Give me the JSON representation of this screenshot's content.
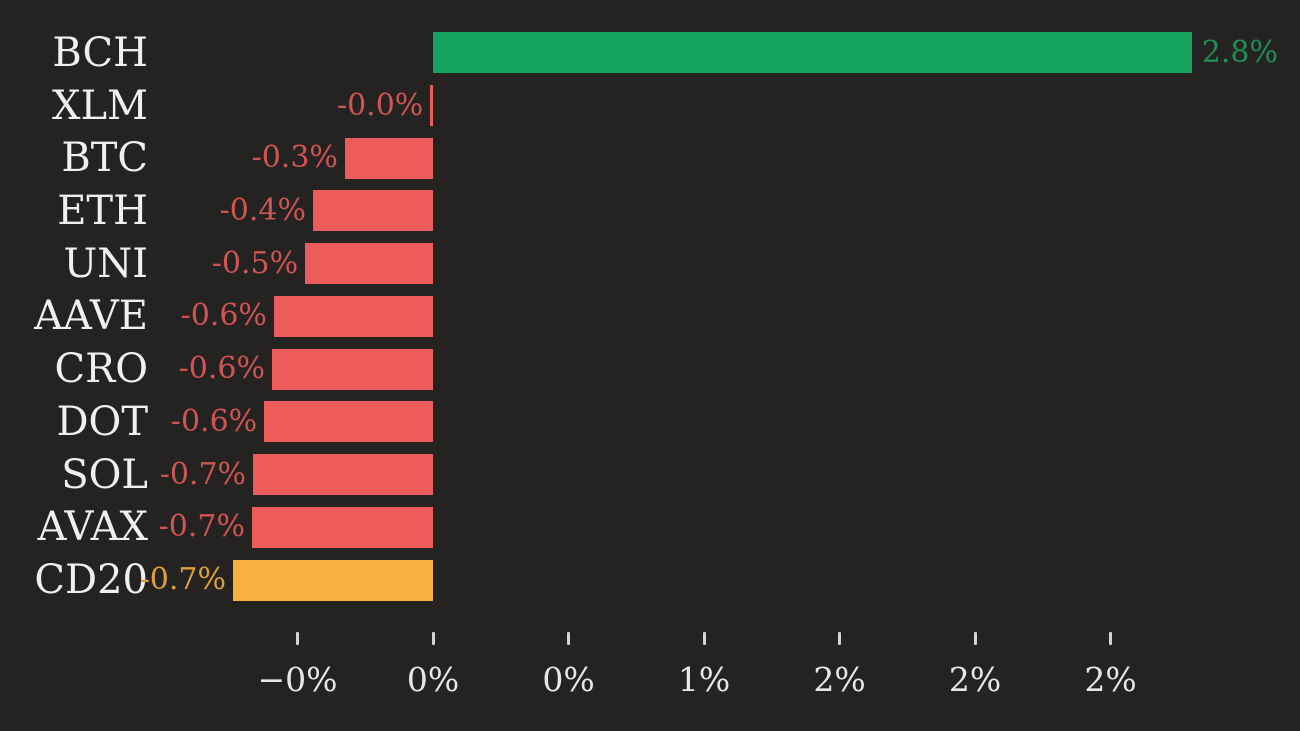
{
  "chart_data": {
    "type": "bar",
    "orientation": "horizontal",
    "title": "",
    "xlabel": "",
    "ylabel": "",
    "grid": false,
    "legend": "none",
    "categories": [
      "BCH",
      "XLM",
      "BTC",
      "ETH",
      "UNI",
      "AAVE",
      "CRO",
      "DOT",
      "SOL",
      "AVAX",
      "CD20"
    ],
    "values": [
      2.8,
      -0.0,
      -0.3,
      -0.4,
      -0.5,
      -0.6,
      -0.6,
      -0.6,
      -0.7,
      -0.7,
      -0.7
    ],
    "value_labels": [
      "2.8%",
      "-0.0%",
      "-0.3%",
      "-0.4%",
      "-0.5%",
      "-0.6%",
      "-0.6%",
      "-0.6%",
      "-0.7%",
      "-0.7%",
      "-0.7%"
    ],
    "values_precise_pixel_estimate": [
      2.8,
      -0.01,
      -0.325,
      -0.443,
      -0.472,
      -0.587,
      -0.594,
      -0.623,
      -0.664,
      -0.668,
      -0.738
    ],
    "bar_roles": [
      "positive",
      "negative",
      "negative",
      "negative",
      "negative",
      "negative",
      "negative",
      "negative",
      "negative",
      "negative",
      "index"
    ],
    "x_axis": {
      "tick_values": [
        -0.5,
        0,
        0.5,
        1,
        1.5,
        2,
        2.5
      ],
      "tick_labels": [
        "−0%",
        "0%",
        "0%",
        "1%",
        "2%",
        "2%",
        "2%"
      ],
      "range": [
        -0.9,
        3.2
      ]
    }
  },
  "colors": {
    "background": "#252222",
    "positive_bar": "#15a360",
    "negative_bar": "#ee5b5b",
    "index_bar": "#f6b13e",
    "positive_text": "#1f8e55",
    "negative_text": "#d05454",
    "index_text": "#dda037",
    "category_text": "#f2f0ee",
    "axis_text": "#e9e7e5",
    "tick_mark": "#d5d3d1"
  }
}
